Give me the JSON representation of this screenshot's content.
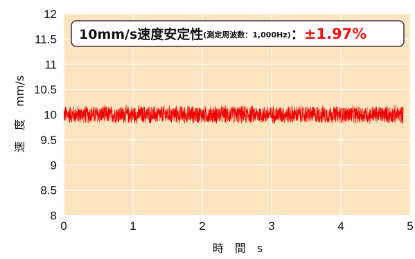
{
  "chart_data": {
    "type": "line",
    "title_main": "10mm/s速度安定性",
    "title_note": "(測定周波数：1,000Hz)",
    "title_sep": "：",
    "title_value": "±1.97%",
    "xlabel": "時　間　s",
    "ylabel_text": "速　度",
    "ylabel_unit": "mm/s",
    "xlim": [
      0,
      5
    ],
    "ylim": [
      8,
      12
    ],
    "xticks": [
      "0",
      "1",
      "2",
      "3",
      "4",
      "5"
    ],
    "yticks": [
      "8",
      "8.5",
      "9",
      "9.5",
      "10",
      "10.5",
      "11",
      "11.5",
      "12"
    ],
    "grid": true,
    "series": [
      {
        "x_range": [
          0,
          4.9
        ],
        "sample_rate_hz": 1000,
        "mean": 10.0,
        "amplitude": 0.197
      }
    ],
    "colors": {
      "plot_bg": "#fbe5c0",
      "grid": "#ffffff",
      "series": "#ee0000",
      "value_text": "#ee1111",
      "box_border": "#333333",
      "box_bg": "#ffffff"
    }
  }
}
